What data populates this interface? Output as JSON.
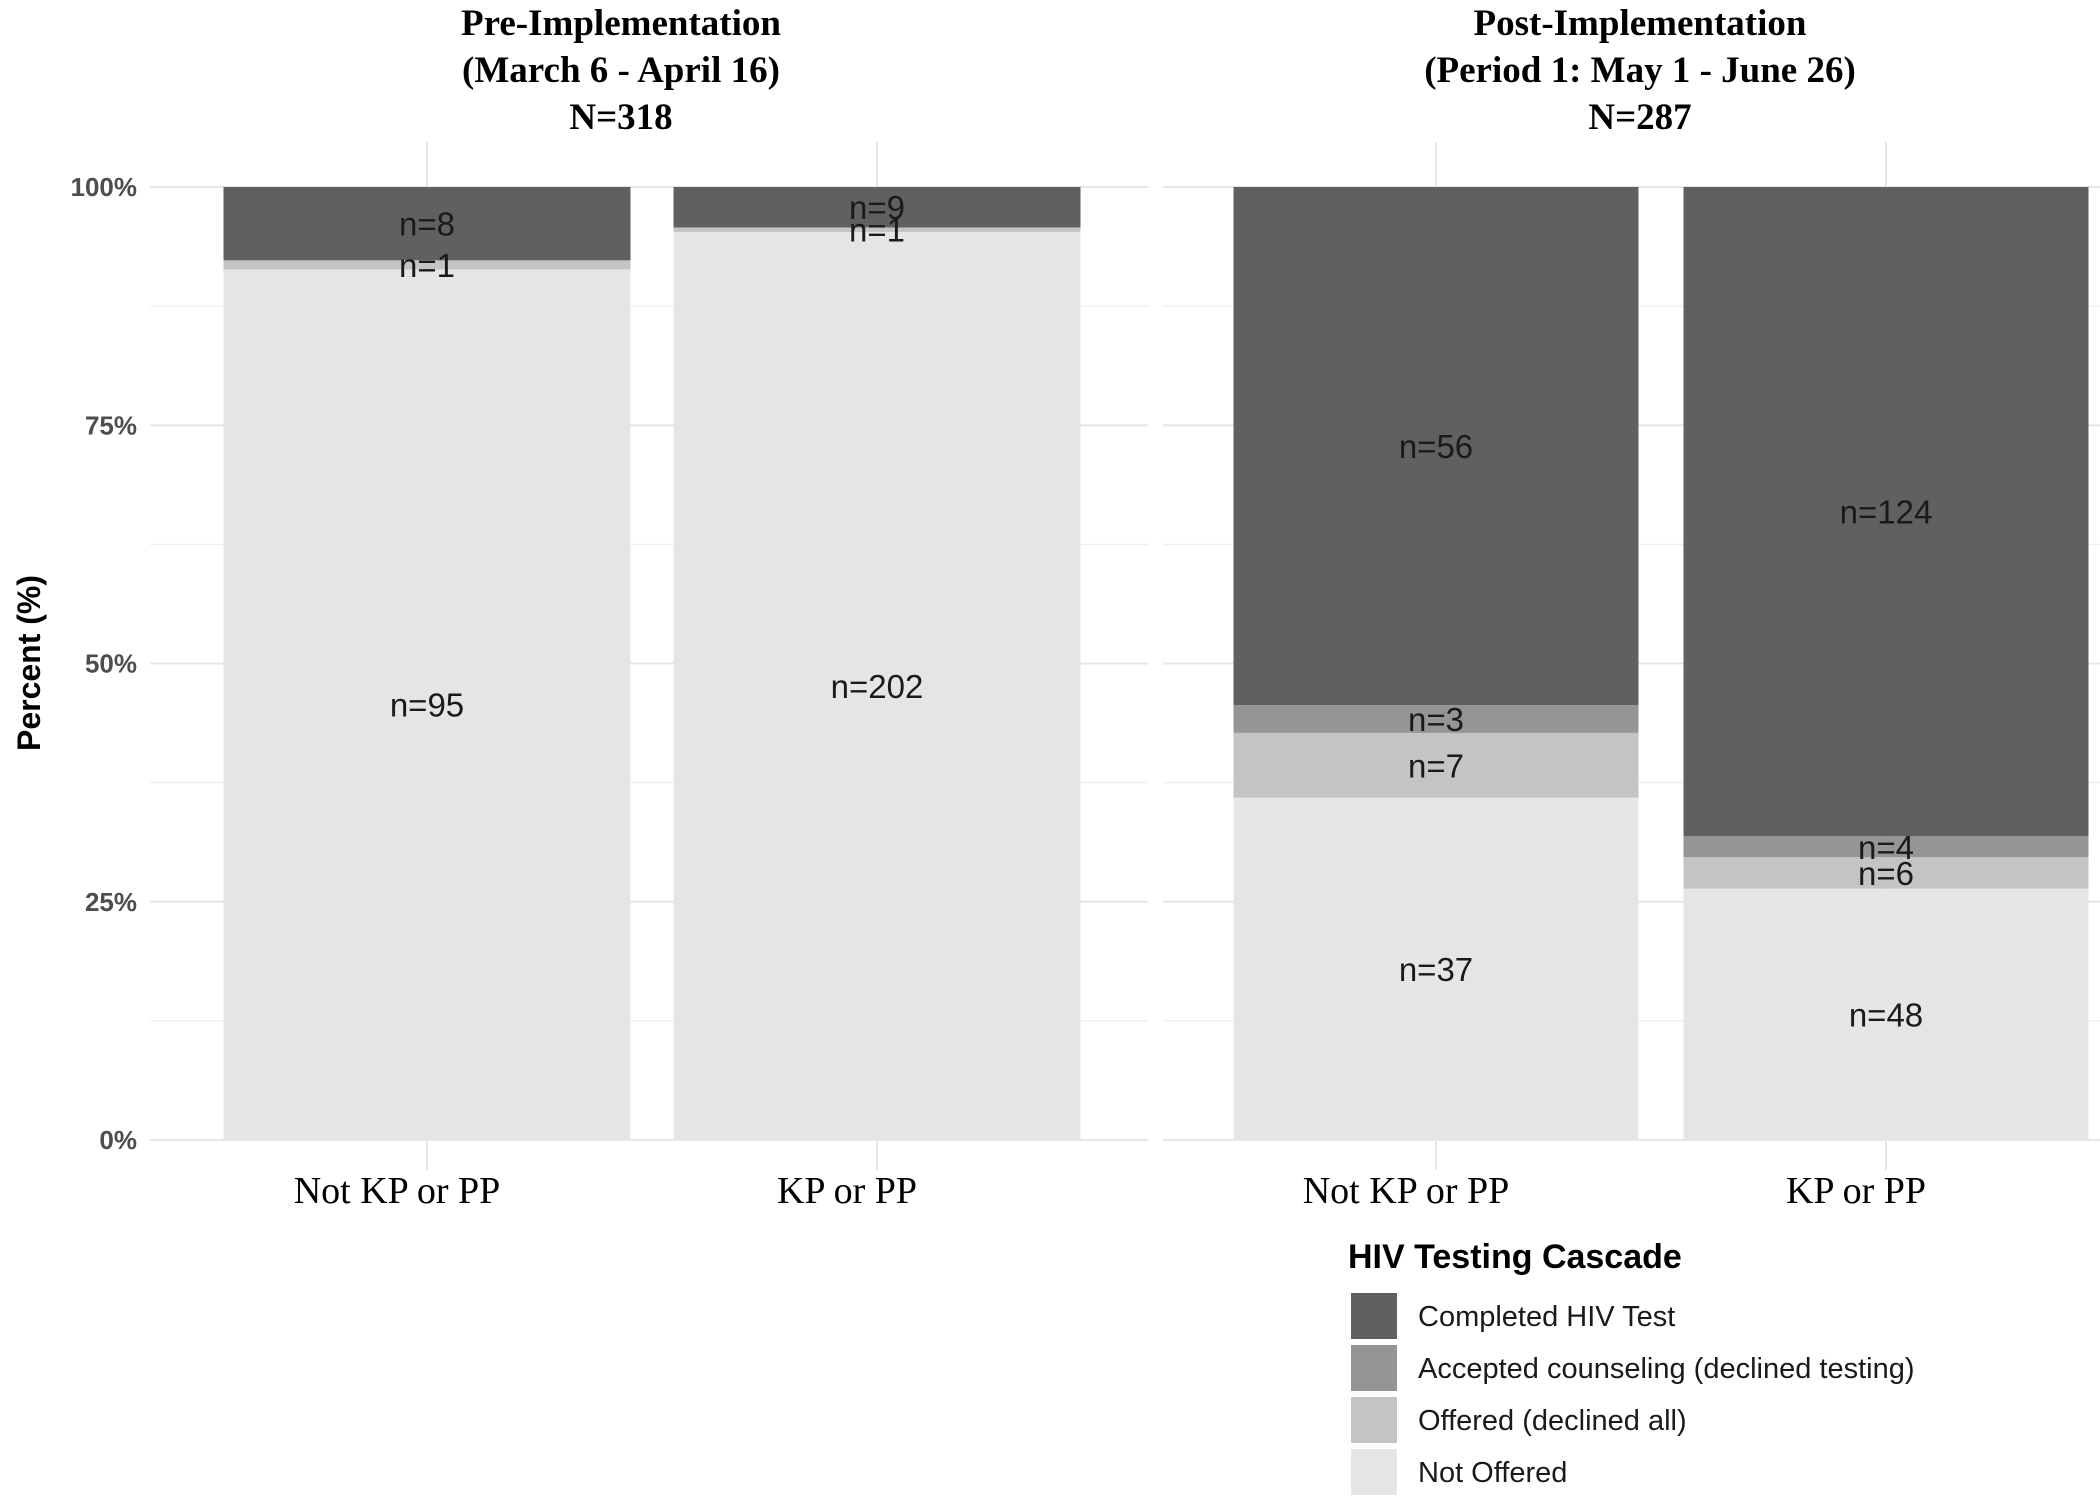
{
  "chart_data": {
    "type": "bar",
    "stacked": "percent",
    "ylabel": "Percent (%)",
    "y_ticks": [
      "0%",
      "25%",
      "50%",
      "75%",
      "100%"
    ],
    "ylim": [
      0,
      100
    ],
    "legend": {
      "title": "HIV Testing Cascade",
      "position": "bottom-right",
      "entries": [
        {
          "name": "Completed HIV Test",
          "color": "#606060"
        },
        {
          "name": "Accepted counseling (declined testing)",
          "color": "#959595"
        },
        {
          "name": "Offered (declined all)",
          "color": "#c4c4c4"
        },
        {
          "name": "Not Offered",
          "color": "#e5e5e5"
        }
      ]
    },
    "panels": [
      {
        "title": [
          "Pre-Implementation",
          "(March 6 - April 16)",
          "N=318"
        ],
        "categories": [
          "Not KP or PP",
          "KP or PP"
        ],
        "series": [
          {
            "name": "Not Offered",
            "values": [
              95,
              202
            ],
            "labels": [
              "n=95",
              "n=202"
            ]
          },
          {
            "name": "Offered (declined all)",
            "values": [
              1,
              1
            ],
            "labels": [
              "n=1",
              "n=1"
            ]
          },
          {
            "name": "Accepted counseling (declined testing)",
            "values": [
              0,
              0
            ],
            "labels": [
              "",
              ""
            ]
          },
          {
            "name": "Completed HIV Test",
            "values": [
              8,
              9
            ],
            "labels": [
              "n=8",
              "n=9"
            ]
          }
        ]
      },
      {
        "title": [
          "Post-Implementation",
          "(Period 1: May 1 - June 26)",
          "N=287"
        ],
        "categories": [
          "Not KP or PP",
          "KP or PP"
        ],
        "series": [
          {
            "name": "Not Offered",
            "values": [
              37,
              48
            ],
            "labels": [
              "n=37",
              "n=48"
            ]
          },
          {
            "name": "Offered (declined all)",
            "values": [
              7,
              6
            ],
            "labels": [
              "n=7",
              "n=6"
            ]
          },
          {
            "name": "Accepted counseling (declined testing)",
            "values": [
              3,
              4
            ],
            "labels": [
              "n=3",
              "n=4"
            ]
          },
          {
            "name": "Completed HIV Test",
            "values": [
              56,
              124
            ],
            "labels": [
              "n=56",
              "n=124"
            ]
          }
        ]
      }
    ]
  }
}
